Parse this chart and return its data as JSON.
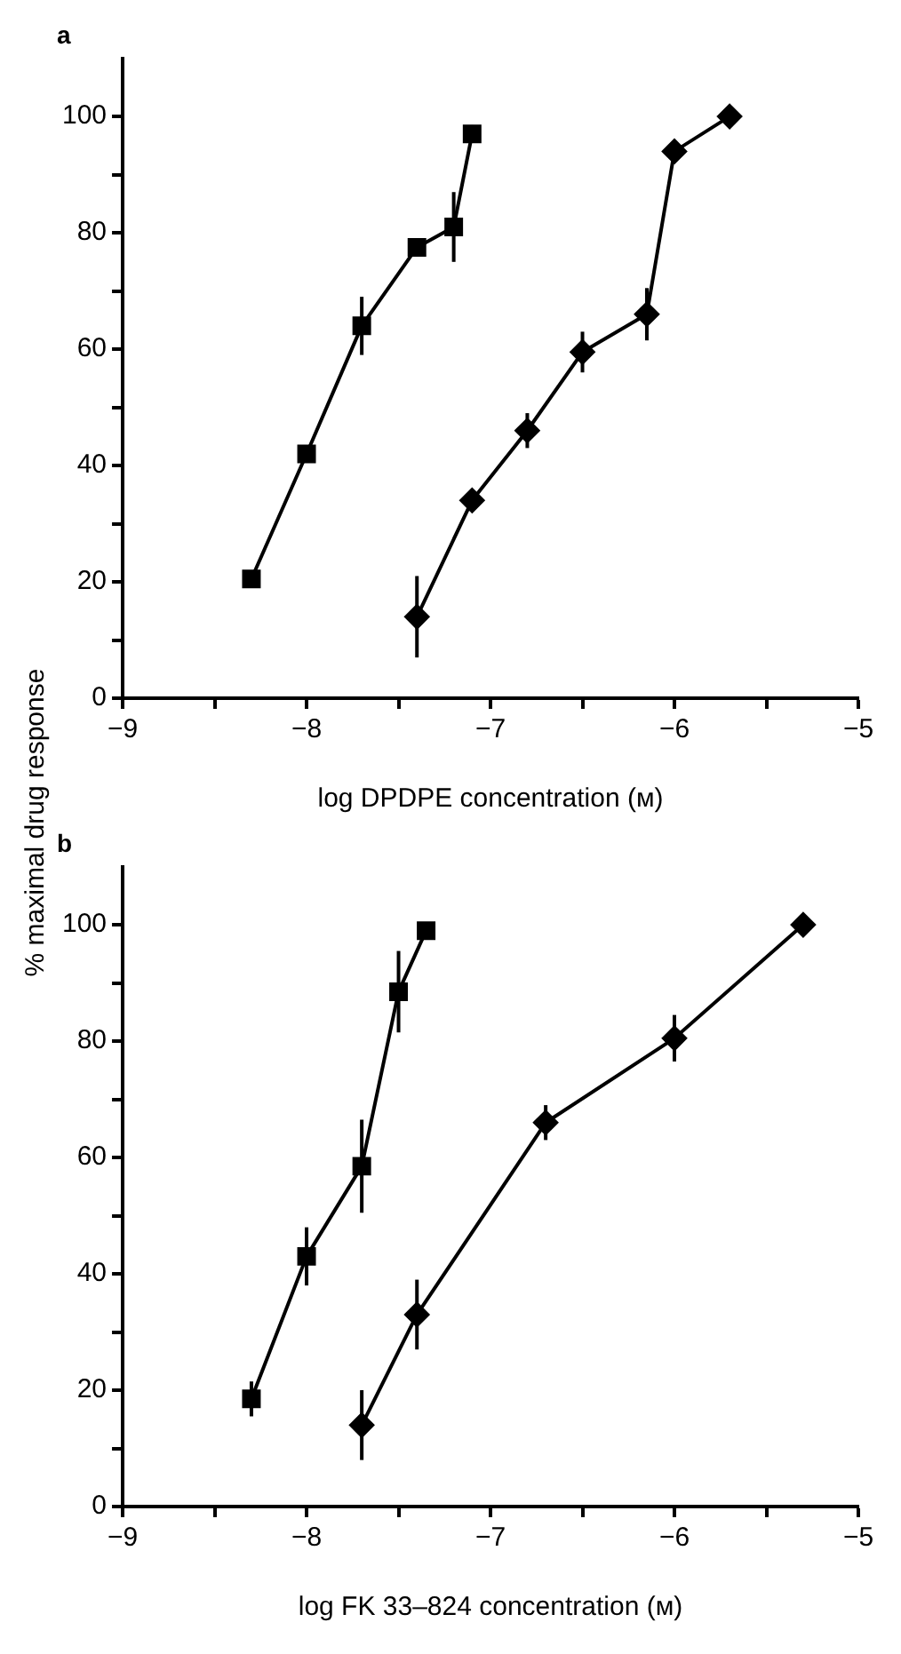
{
  "chart_data": [
    {
      "type": "line",
      "title": "a",
      "xlabel": "log DPDPE concentration (м)",
      "ylabel": "% maximal drug response",
      "xlim": [
        -9,
        -5
      ],
      "ylim": [
        0,
        110
      ],
      "xticks": [
        -9,
        {
          "value": -8.5,
          "label": null
        },
        -8,
        {
          "value": -7.5,
          "label": null
        },
        -7,
        {
          "value": -6.5,
          "label": null
        },
        -6,
        {
          "value": -5.5,
          "label": null
        },
        -5
      ],
      "yticks": [
        0,
        {
          "value": 10,
          "label": null
        },
        20,
        {
          "value": 30,
          "label": null
        },
        40,
        {
          "value": 50,
          "label": null
        },
        60,
        {
          "value": 70,
          "label": null
        },
        80,
        {
          "value": 90,
          "label": null
        },
        100
      ],
      "grid": false,
      "legend": false,
      "line_style": "solid",
      "series": [
        {
          "color": "#000000",
          "marker": "square",
          "x": [
            -8.3,
            -8,
            -7.7,
            -7.4,
            -7.2,
            -7.1
          ],
          "values": [
            20.5,
            42,
            64,
            77.5,
            81,
            97
          ],
          "errors": [
            null,
            1.5,
            5,
            null,
            6,
            1.5
          ]
        },
        {
          "color": "#000000",
          "marker": "diamond",
          "x": [
            -7.4,
            -7.1,
            -6.8,
            -6.5,
            -6.15,
            -6,
            -5.7
          ],
          "values": [
            14,
            34,
            46,
            59.5,
            66,
            94,
            100
          ],
          "errors": [
            7,
            null,
            3,
            3.5,
            4.5,
            null,
            null
          ]
        }
      ]
    },
    {
      "type": "line",
      "title": "b",
      "xlabel": "log FK 33–824 concentration (м)",
      "xlim": [
        -9,
        -5
      ],
      "ylim": [
        0,
        110
      ],
      "xticks": [
        -9,
        {
          "value": -8.5,
          "label": null
        },
        -8,
        {
          "value": -7.5,
          "label": null
        },
        -7,
        {
          "value": -6.5,
          "label": null
        },
        -6,
        {
          "value": -5.5,
          "label": null
        },
        -5
      ],
      "yticks": [
        0,
        {
          "value": 10,
          "label": null
        },
        20,
        {
          "value": 30,
          "label": null
        },
        40,
        {
          "value": 50,
          "label": null
        },
        60,
        {
          "value": 70,
          "label": null
        },
        80,
        {
          "value": 90,
          "label": null
        },
        100
      ],
      "grid": false,
      "legend": false,
      "line_style": "solid",
      "series": [
        {
          "color": "#000000",
          "marker": "square",
          "x": [
            -8.3,
            -8,
            -7.7,
            -7.5,
            -7.35
          ],
          "values": [
            18.5,
            43,
            58.5,
            88.5,
            99
          ],
          "errors": [
            3,
            5,
            8,
            7,
            null
          ]
        },
        {
          "color": "#000000",
          "marker": "diamond",
          "x": [
            -7.7,
            -7.4,
            -6.7,
            -6,
            -5.3
          ],
          "values": [
            14,
            33,
            66,
            80.5,
            100
          ],
          "errors": [
            6,
            6,
            3,
            4,
            null
          ]
        }
      ]
    }
  ]
}
